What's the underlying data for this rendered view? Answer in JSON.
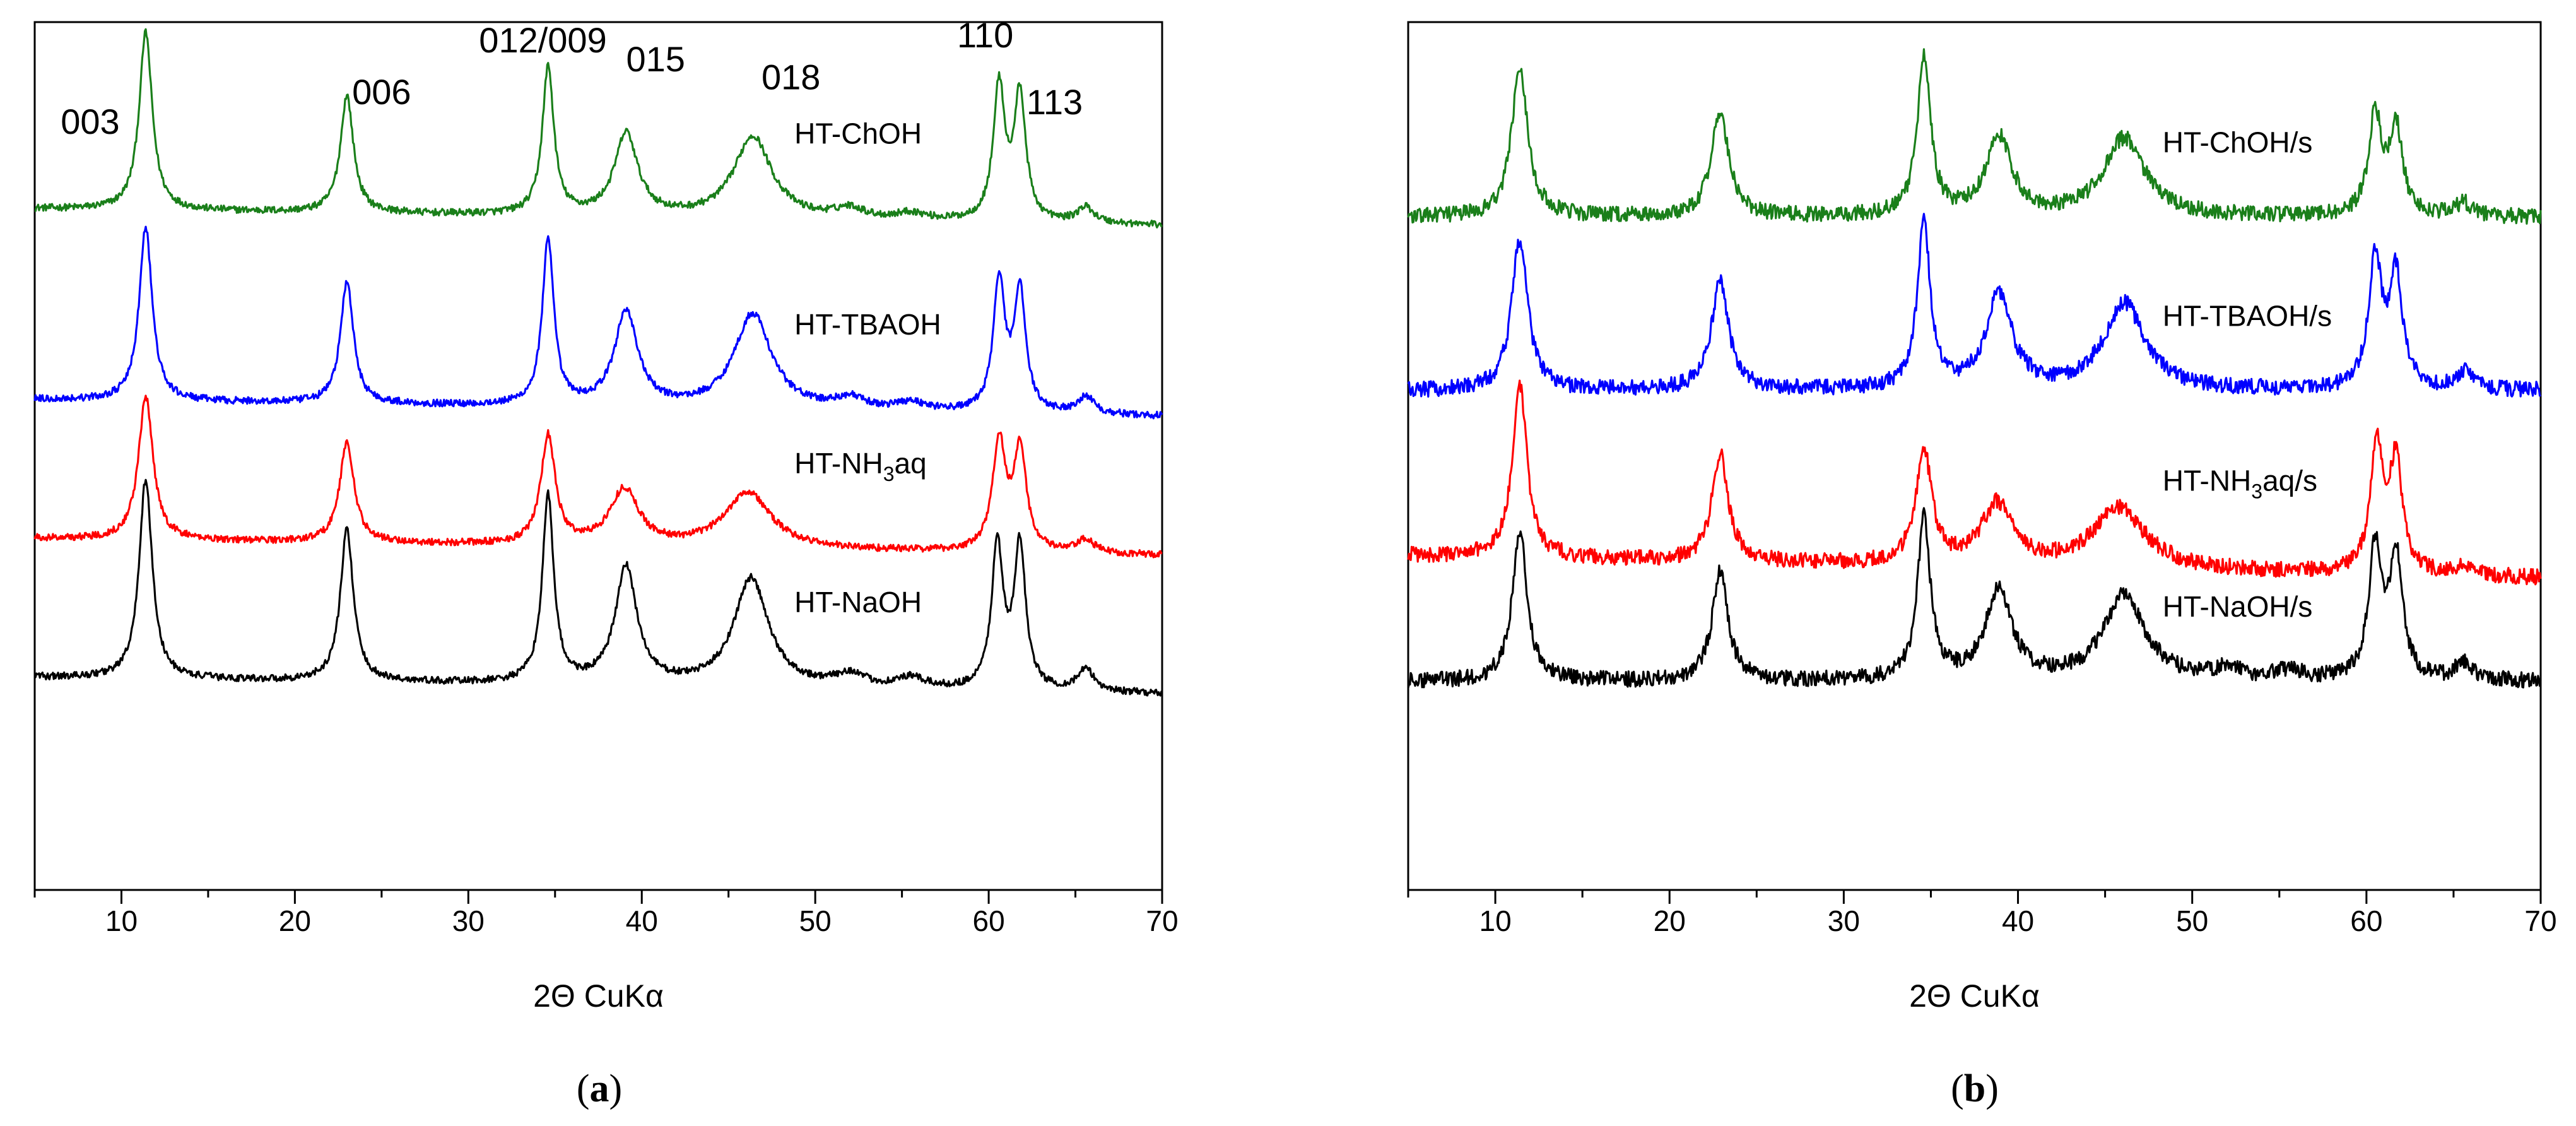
{
  "colors": {
    "green": "#1a7f1a",
    "blue": "#0000ff",
    "red": "#ff0000",
    "black": "#000000"
  },
  "chart_data": [
    {
      "id": "a",
      "type": "line",
      "caption": "(a)",
      "caption_letter": "a",
      "xlabel": "2Θ CuKα",
      "ylabel": "",
      "xlim": [
        5,
        70
      ],
      "xticks": [
        10,
        20,
        30,
        40,
        50,
        60,
        70
      ],
      "yticks_shown": false,
      "noise": 0.004,
      "peak_labels": [
        {
          "text": "003",
          "x": 8.2,
          "above": 0.06
        },
        {
          "text": "006",
          "x": 25.0,
          "above": 0.05
        },
        {
          "text": "012/009",
          "x": 34.3,
          "above": 0.0
        },
        {
          "text": "015",
          "x": 40.8,
          "above": 0.06
        },
        {
          "text": "018",
          "x": 48.6,
          "above": 0.06
        },
        {
          "text": "110",
          "x": 59.8,
          "above": 0.035
        },
        {
          "text": "113",
          "x": 63.8,
          "above": 0.045
        }
      ],
      "series": [
        {
          "name": "HT-ChOH",
          "label": "HT-ChOH",
          "label_sub": "",
          "label_tail": "",
          "color": "#1a7f1a",
          "label_x": 48.8,
          "baseline": 0.785,
          "slope": -0.0003,
          "peaks": [
            [
              11.4,
              0.205,
              0.45
            ],
            [
              23.0,
              0.135,
              0.45
            ],
            [
              34.6,
              0.17,
              0.4
            ],
            [
              39.1,
              0.095,
              0.8
            ],
            [
              46.4,
              0.095,
              1.3
            ],
            [
              52.0,
              0.012,
              1.0
            ],
            [
              55.5,
              0.008,
              1.0
            ],
            [
              60.6,
              0.155,
              0.4
            ],
            [
              61.8,
              0.145,
              0.4
            ],
            [
              65.6,
              0.018,
              0.6
            ]
          ]
        },
        {
          "name": "HT-TBAOH",
          "label": "HT-TBAOH",
          "label_sub": "",
          "label_tail": "",
          "color": "#0000ff",
          "label_x": 48.8,
          "baseline": 0.565,
          "slope": -0.0003,
          "peaks": [
            [
              11.4,
              0.2,
              0.45
            ],
            [
              23.0,
              0.14,
              0.45
            ],
            [
              34.6,
              0.19,
              0.4
            ],
            [
              39.1,
              0.11,
              0.8
            ],
            [
              46.4,
              0.11,
              1.3
            ],
            [
              52.0,
              0.013,
              1.0
            ],
            [
              55.5,
              0.01,
              1.0
            ],
            [
              60.6,
              0.15,
              0.4
            ],
            [
              61.8,
              0.14,
              0.4
            ],
            [
              65.6,
              0.02,
              0.6
            ]
          ]
        },
        {
          "name": "HT-NH3aq",
          "label": "HT-NH",
          "label_sub": "3",
          "label_tail": "aq",
          "color": "#ff0000",
          "label_x": 48.8,
          "baseline": 0.405,
          "slope": -0.0003,
          "peaks": [
            [
              11.4,
              0.165,
              0.5
            ],
            [
              23.0,
              0.115,
              0.5
            ],
            [
              34.6,
              0.125,
              0.5
            ],
            [
              39.0,
              0.065,
              1.0
            ],
            [
              46.1,
              0.065,
              1.6
            ],
            [
              60.6,
              0.125,
              0.45
            ],
            [
              61.8,
              0.115,
              0.45
            ],
            [
              65.6,
              0.015,
              0.6
            ]
          ]
        },
        {
          "name": "HT-NaOH",
          "label": "HT-NaOH",
          "label_sub": "",
          "label_tail": "",
          "color": "#000000",
          "label_x": 48.8,
          "baseline": 0.245,
          "slope": -0.0003,
          "peaks": [
            [
              11.4,
              0.23,
              0.45
            ],
            [
              23.0,
              0.175,
              0.45
            ],
            [
              34.6,
              0.215,
              0.4
            ],
            [
              39.1,
              0.135,
              0.75
            ],
            [
              46.3,
              0.125,
              1.2
            ],
            [
              52.0,
              0.015,
              1.0
            ],
            [
              55.5,
              0.012,
              1.0
            ],
            [
              60.5,
              0.165,
              0.4
            ],
            [
              61.8,
              0.165,
              0.4
            ],
            [
              65.6,
              0.025,
              0.6
            ]
          ]
        }
      ]
    },
    {
      "id": "b",
      "type": "line",
      "caption": "(b)",
      "caption_letter": "b",
      "xlabel": "2Θ CuKα",
      "ylabel": "",
      "xlim": [
        5,
        70
      ],
      "xticks": [
        10,
        20,
        30,
        40,
        50,
        60,
        70
      ],
      "yticks_shown": false,
      "noise": 0.009,
      "peak_labels": [],
      "series": [
        {
          "name": "HT-ChOH/s",
          "label": "HT-ChOH/s",
          "label_sub": "",
          "label_tail": "",
          "color": "#1a7f1a",
          "label_x": 48.3,
          "baseline": 0.775,
          "slope": 0.0,
          "peaks": [
            [
              11.4,
              0.175,
              0.55
            ],
            [
              22.9,
              0.12,
              0.6
            ],
            [
              34.6,
              0.185,
              0.45
            ],
            [
              38.9,
              0.09,
              0.9
            ],
            [
              46.1,
              0.09,
              1.4
            ],
            [
              60.5,
              0.115,
              0.45
            ],
            [
              61.7,
              0.1,
              0.45
            ],
            [
              65.6,
              0.015,
              0.6
            ]
          ]
        },
        {
          "name": "HT-TBAOH/s",
          "label": "HT-TBAOH/s",
          "label_sub": "",
          "label_tail": "",
          "color": "#0000ff",
          "label_x": 48.3,
          "baseline": 0.575,
          "slope": 0.0,
          "peaks": [
            [
              11.4,
              0.175,
              0.55
            ],
            [
              22.9,
              0.125,
              0.6
            ],
            [
              34.6,
              0.19,
              0.45
            ],
            [
              38.9,
              0.11,
              0.9
            ],
            [
              46.1,
              0.1,
              1.4
            ],
            [
              60.5,
              0.15,
              0.45
            ],
            [
              61.7,
              0.13,
              0.45
            ],
            [
              65.6,
              0.02,
              0.6
            ]
          ]
        },
        {
          "name": "HT-NH3aq/s",
          "label": "HT-NH",
          "label_sub": "3",
          "label_tail": "aq/s",
          "color": "#ff0000",
          "label_x": 48.3,
          "baseline": 0.385,
          "slope": -0.0004,
          "peaks": [
            [
              11.4,
              0.2,
              0.5
            ],
            [
              22.9,
              0.125,
              0.55
            ],
            [
              34.6,
              0.13,
              0.55
            ],
            [
              38.8,
              0.07,
              1.1
            ],
            [
              45.8,
              0.07,
              1.8
            ],
            [
              60.6,
              0.145,
              0.45
            ],
            [
              61.7,
              0.125,
              0.45
            ],
            [
              65.6,
              0.013,
              0.6
            ]
          ]
        },
        {
          "name": "HT-NaOH/s",
          "label": "HT-NaOH/s",
          "label_sub": "",
          "label_tail": "",
          "color": "#000000",
          "label_x": 48.3,
          "baseline": 0.24,
          "slope": 0.0,
          "peaks": [
            [
              11.4,
              0.175,
              0.5
            ],
            [
              22.9,
              0.125,
              0.55
            ],
            [
              34.6,
              0.185,
              0.45
            ],
            [
              38.9,
              0.105,
              0.9
            ],
            [
              46.1,
              0.1,
              1.4
            ],
            [
              52.0,
              0.012,
              1.0
            ],
            [
              55.5,
              0.01,
              1.0
            ],
            [
              60.5,
              0.15,
              0.45
            ],
            [
              61.7,
              0.14,
              0.45
            ],
            [
              65.6,
              0.02,
              0.6
            ]
          ]
        }
      ]
    }
  ]
}
